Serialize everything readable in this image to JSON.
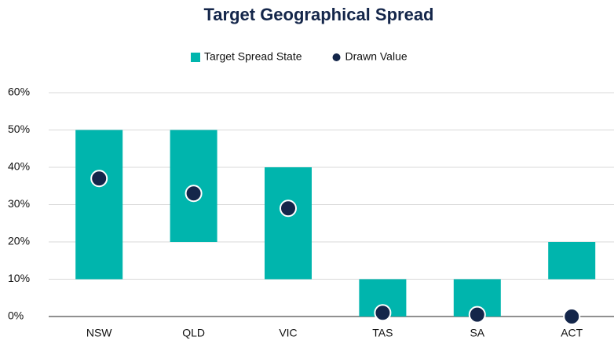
{
  "chart_data": {
    "type": "bar",
    "title": "Target Geographical Spread",
    "categories": [
      "NSW",
      "QLD",
      "VIC",
      "TAS",
      "SA",
      "ACT"
    ],
    "series": [
      {
        "name": "Target Spread State",
        "type": "range",
        "color": "#00b5ad",
        "low": [
          10,
          20,
          10,
          0,
          0,
          10
        ],
        "high": [
          50,
          50,
          40,
          10,
          10,
          20
        ]
      },
      {
        "name": "Drawn Value",
        "type": "scatter",
        "color": "#14264a",
        "values": [
          37,
          33,
          29,
          1,
          0.5,
          0
        ]
      }
    ],
    "ylim": [
      0,
      60
    ],
    "yticks": [
      {
        "value": 0,
        "label": "0%"
      },
      {
        "value": 10,
        "label": "10%"
      },
      {
        "value": 20,
        "label": "20%"
      },
      {
        "value": 30,
        "label": "30%"
      },
      {
        "value": 40,
        "label": "40%"
      },
      {
        "value": 50,
        "label": "50%"
      },
      {
        "value": 60,
        "label": "60%"
      }
    ],
    "grid": true,
    "legend": "top"
  }
}
